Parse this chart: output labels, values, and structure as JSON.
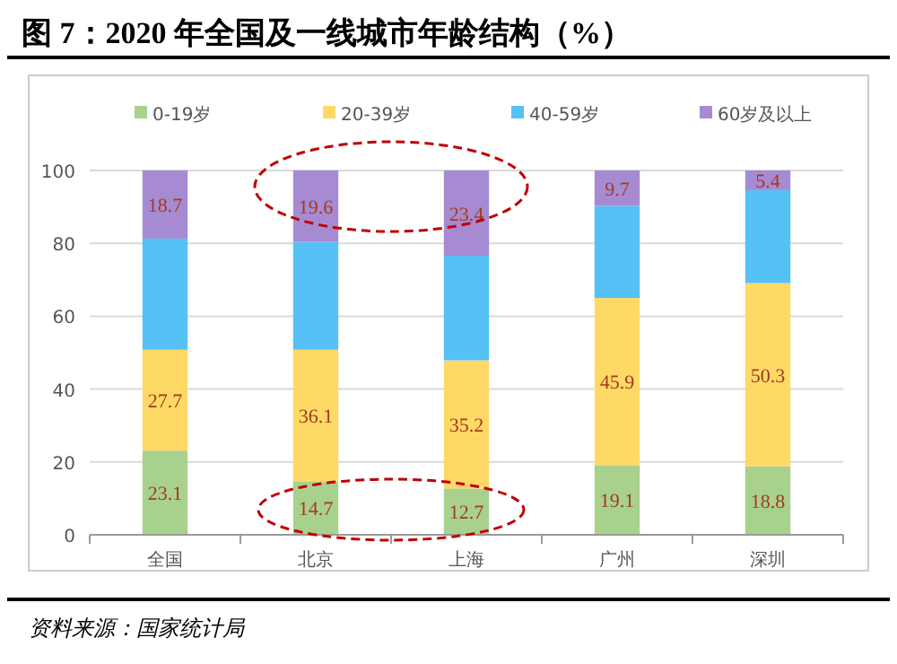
{
  "chart_data": {
    "type": "bar",
    "title": "图 7：2020 年全国及一线城市年龄结构（%）",
    "categories": [
      "全国",
      "北京",
      "上海",
      "广州",
      "深圳"
    ],
    "stacked": true,
    "series": [
      {
        "name": "0-19岁",
        "color": "#a9d18e",
        "values": [
          23.1,
          14.7,
          12.7,
          19.1,
          18.8
        ],
        "value_labels": [
          "23.1",
          "14.7",
          "12.7",
          "19.1",
          "18.8"
        ]
      },
      {
        "name": "20-39岁",
        "color": "#ffd966",
        "values": [
          27.7,
          36.1,
          35.2,
          45.9,
          50.3
        ],
        "value_labels": [
          "27.7",
          "36.1",
          "35.2",
          "45.9",
          "50.3"
        ]
      },
      {
        "name": "40-59岁",
        "color": "#55c1f5",
        "values": [
          30.5,
          29.6,
          28.7,
          25.3,
          25.5
        ],
        "value_labels": [
          null,
          null,
          null,
          null,
          null
        ]
      },
      {
        "name": "60岁及以上",
        "color": "#a68bd3",
        "values": [
          18.7,
          19.6,
          23.4,
          9.7,
          5.4
        ],
        "value_labels": [
          "18.7",
          "19.6",
          "23.4",
          "9.7",
          "5.4"
        ]
      }
    ],
    "ylim": [
      0,
      100
    ],
    "yticks": [
      0,
      20,
      40,
      60,
      80,
      100
    ],
    "grid": "y",
    "legend": "top",
    "annotations": [
      "资料来源：国家统计局"
    ]
  }
}
